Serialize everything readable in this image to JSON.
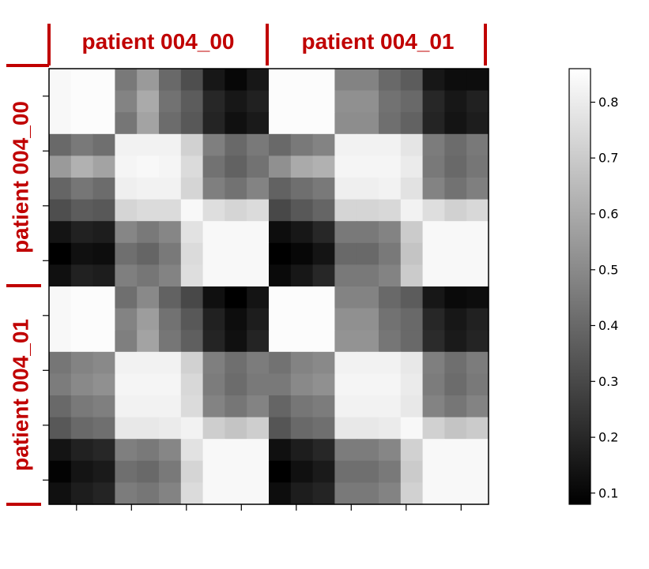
{
  "chart_data": {
    "type": "heatmap",
    "title": "",
    "xlabel": "",
    "ylabel": "",
    "n": 16,
    "groups_x": [
      "patient 004_00",
      "patient 004_01"
    ],
    "groups_y": [
      "patient 004_00",
      "patient 004_01"
    ],
    "label_color": "#c00000",
    "colormap": "gray",
    "vmin": 0.08,
    "vmax": 0.86,
    "colorbar_ticks": [
      0.1,
      0.2,
      0.3,
      0.4,
      0.5,
      0.6,
      0.7,
      0.8
    ],
    "colorbar_tick_labels": [
      "0.1",
      "0.2",
      "0.3",
      "0.4",
      "0.5",
      "0.6",
      "0.7",
      "0.8"
    ],
    "grid": false,
    "values": [
      [
        0.84,
        0.85,
        0.85,
        0.45,
        0.55,
        0.4,
        0.32,
        0.15,
        0.1,
        0.15,
        0.85,
        0.85,
        0.85,
        0.48,
        0.48,
        0.4,
        0.36,
        0.15,
        0.12,
        0.12
      ],
      [
        0.84,
        0.85,
        0.85,
        0.48,
        0.6,
        0.43,
        0.36,
        0.2,
        0.15,
        0.18,
        0.85,
        0.85,
        0.85,
        0.52,
        0.52,
        0.43,
        0.4,
        0.2,
        0.15,
        0.18
      ],
      [
        0.84,
        0.85,
        0.85,
        0.44,
        0.58,
        0.41,
        0.35,
        0.19,
        0.13,
        0.16,
        0.85,
        0.85,
        0.85,
        0.51,
        0.51,
        0.42,
        0.38,
        0.19,
        0.14,
        0.17
      ],
      [
        0.4,
        0.45,
        0.42,
        0.82,
        0.82,
        0.82,
        0.72,
        0.47,
        0.4,
        0.45,
        0.4,
        0.45,
        0.48,
        0.82,
        0.82,
        0.82,
        0.78,
        0.46,
        0.41,
        0.45
      ],
      [
        0.55,
        0.62,
        0.58,
        0.83,
        0.84,
        0.83,
        0.75,
        0.43,
        0.38,
        0.43,
        0.52,
        0.6,
        0.62,
        0.83,
        0.83,
        0.83,
        0.8,
        0.45,
        0.4,
        0.44
      ],
      [
        0.39,
        0.44,
        0.41,
        0.81,
        0.82,
        0.82,
        0.73,
        0.47,
        0.43,
        0.48,
        0.38,
        0.42,
        0.45,
        0.81,
        0.81,
        0.82,
        0.77,
        0.48,
        0.43,
        0.47
      ],
      [
        0.32,
        0.36,
        0.35,
        0.73,
        0.75,
        0.75,
        0.84,
        0.76,
        0.73,
        0.75,
        0.3,
        0.35,
        0.39,
        0.73,
        0.73,
        0.74,
        0.82,
        0.76,
        0.72,
        0.74
      ],
      [
        0.14,
        0.18,
        0.17,
        0.49,
        0.45,
        0.49,
        0.77,
        0.84,
        0.84,
        0.84,
        0.12,
        0.15,
        0.2,
        0.45,
        0.45,
        0.48,
        0.7,
        0.84,
        0.84,
        0.84
      ],
      [
        0.08,
        0.13,
        0.12,
        0.42,
        0.39,
        0.45,
        0.75,
        0.84,
        0.84,
        0.84,
        0.07,
        0.1,
        0.14,
        0.4,
        0.4,
        0.45,
        0.68,
        0.84,
        0.84,
        0.84
      ],
      [
        0.13,
        0.18,
        0.17,
        0.47,
        0.44,
        0.48,
        0.76,
        0.84,
        0.84,
        0.84,
        0.11,
        0.15,
        0.2,
        0.45,
        0.45,
        0.48,
        0.7,
        0.84,
        0.84,
        0.84
      ],
      [
        0.84,
        0.85,
        0.85,
        0.42,
        0.5,
        0.38,
        0.3,
        0.13,
        0.08,
        0.14,
        0.85,
        0.85,
        0.85,
        0.48,
        0.48,
        0.4,
        0.36,
        0.15,
        0.11,
        0.12
      ],
      [
        0.84,
        0.85,
        0.85,
        0.48,
        0.56,
        0.43,
        0.35,
        0.18,
        0.12,
        0.17,
        0.85,
        0.85,
        0.85,
        0.52,
        0.52,
        0.43,
        0.4,
        0.2,
        0.15,
        0.18
      ],
      [
        0.84,
        0.85,
        0.85,
        0.47,
        0.58,
        0.44,
        0.37,
        0.19,
        0.13,
        0.19,
        0.85,
        0.85,
        0.85,
        0.53,
        0.53,
        0.44,
        0.4,
        0.21,
        0.16,
        0.19
      ],
      [
        0.44,
        0.48,
        0.5,
        0.82,
        0.82,
        0.82,
        0.72,
        0.47,
        0.42,
        0.46,
        0.43,
        0.48,
        0.5,
        0.82,
        0.82,
        0.82,
        0.79,
        0.47,
        0.42,
        0.46
      ],
      [
        0.46,
        0.5,
        0.52,
        0.83,
        0.83,
        0.83,
        0.74,
        0.46,
        0.41,
        0.45,
        0.45,
        0.5,
        0.52,
        0.83,
        0.83,
        0.83,
        0.8,
        0.46,
        0.41,
        0.45
      ],
      [
        0.4,
        0.45,
        0.47,
        0.82,
        0.82,
        0.82,
        0.75,
        0.48,
        0.44,
        0.48,
        0.39,
        0.44,
        0.46,
        0.82,
        0.82,
        0.82,
        0.79,
        0.48,
        0.44,
        0.48
      ],
      [
        0.35,
        0.4,
        0.42,
        0.79,
        0.79,
        0.8,
        0.82,
        0.71,
        0.68,
        0.71,
        0.34,
        0.4,
        0.42,
        0.79,
        0.79,
        0.8,
        0.84,
        0.72,
        0.68,
        0.7
      ],
      [
        0.14,
        0.18,
        0.2,
        0.47,
        0.45,
        0.49,
        0.77,
        0.84,
        0.84,
        0.84,
        0.13,
        0.17,
        0.2,
        0.46,
        0.46,
        0.49,
        0.72,
        0.84,
        0.84,
        0.84
      ],
      [
        0.09,
        0.14,
        0.16,
        0.42,
        0.4,
        0.45,
        0.73,
        0.84,
        0.84,
        0.84,
        0.08,
        0.13,
        0.16,
        0.42,
        0.42,
        0.45,
        0.7,
        0.84,
        0.84,
        0.84
      ],
      [
        0.13,
        0.17,
        0.19,
        0.46,
        0.44,
        0.48,
        0.75,
        0.84,
        0.84,
        0.84,
        0.12,
        0.17,
        0.19,
        0.45,
        0.45,
        0.48,
        0.72,
        0.84,
        0.84,
        0.84
      ]
    ]
  }
}
